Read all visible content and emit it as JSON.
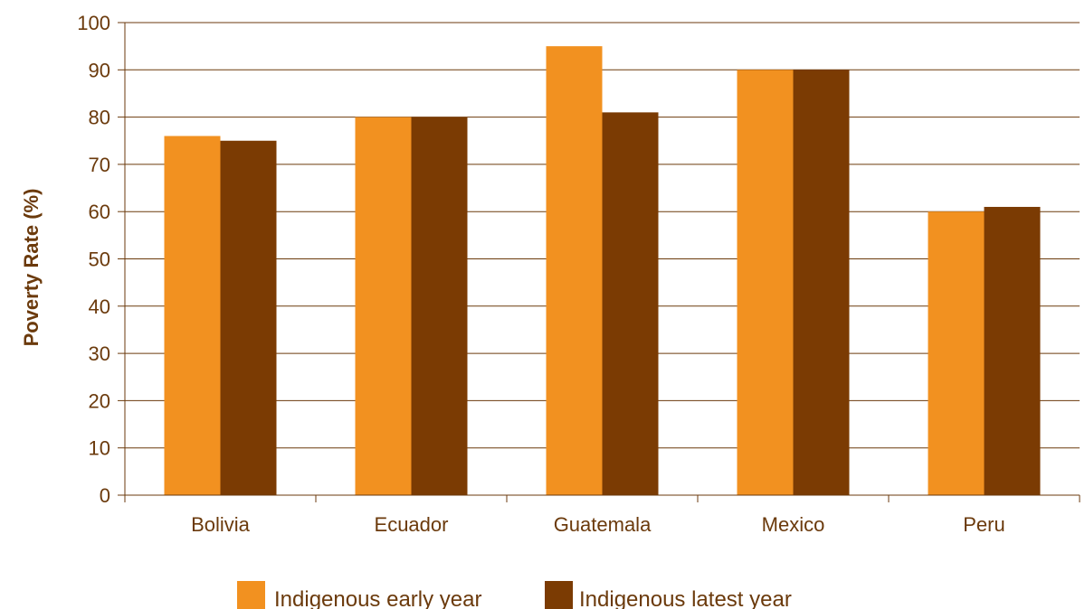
{
  "chart_data": {
    "type": "bar",
    "title": "",
    "xlabel": "",
    "ylabel": "Poverty Rate (%)",
    "ylim": [
      0,
      100
    ],
    "yticks": [
      0,
      10,
      20,
      30,
      40,
      50,
      60,
      70,
      80,
      90,
      100
    ],
    "categories": [
      "Bolivia",
      "Ecuador",
      "Guatemala",
      "Mexico",
      "Peru"
    ],
    "series": [
      {
        "name": "Indigenous early year",
        "color": "#f29120",
        "values": [
          76,
          80,
          95,
          90,
          60
        ]
      },
      {
        "name": "Indigenous latest year",
        "color": "#7b3b03",
        "values": [
          75,
          80,
          81,
          90,
          61
        ]
      }
    ],
    "grid": true,
    "gridline_color": "#6b3a0c",
    "legend": "bottom-center"
  }
}
